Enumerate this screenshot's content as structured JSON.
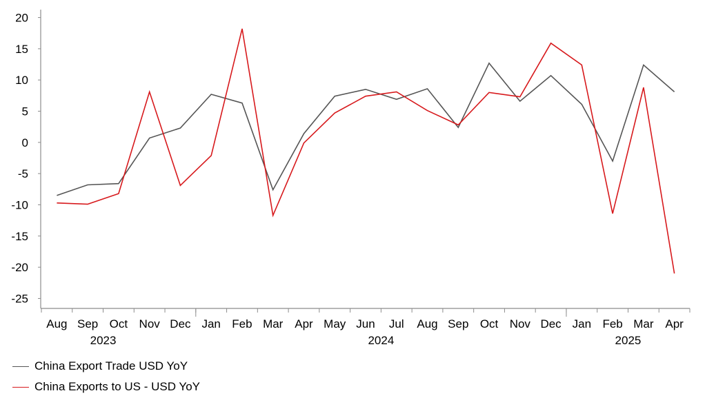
{
  "chart_data": {
    "type": "line",
    "categories": [
      "Aug",
      "Sep",
      "Oct",
      "Nov",
      "Dec",
      "Jan",
      "Feb",
      "Mar",
      "Apr",
      "May",
      "Jun",
      "Jul",
      "Aug",
      "Sep",
      "Oct",
      "Nov",
      "Dec",
      "Jan",
      "Feb",
      "Mar",
      "Apr"
    ],
    "year_labels": [
      {
        "label": "2023",
        "category_index": 1.5
      },
      {
        "label": "2024",
        "category_index": 10.5
      },
      {
        "label": "2025",
        "category_index": 18.5
      }
    ],
    "year_dividers_before": [
      5,
      17
    ],
    "ylim": [
      -25,
      20
    ],
    "yticks": [
      20,
      15,
      10,
      5,
      0,
      -5,
      -10,
      -15,
      -20,
      -25
    ],
    "grid": false,
    "legend_position": "bottom-left",
    "series": [
      {
        "name": "China Export Trade USD YoY",
        "color": "#555555",
        "values": [
          -8.5,
          -6.8,
          -6.6,
          0.7,
          2.3,
          7.7,
          6.3,
          -7.6,
          1.4,
          7.4,
          8.5,
          6.9,
          8.6,
          2.4,
          12.7,
          6.6,
          10.7,
          6.1,
          -3.0,
          12.4,
          8.1
        ]
      },
      {
        "name": "China Exports to US - USD YoY",
        "color": "#d7191c",
        "values": [
          -9.7,
          -9.9,
          -8.2,
          8.1,
          -6.9,
          -2.1,
          18.2,
          -11.7,
          -0.1,
          4.7,
          7.4,
          8.1,
          5.1,
          2.8,
          8.0,
          7.3,
          15.9,
          12.4,
          -11.4,
          8.8,
          -21.0
        ]
      }
    ]
  }
}
